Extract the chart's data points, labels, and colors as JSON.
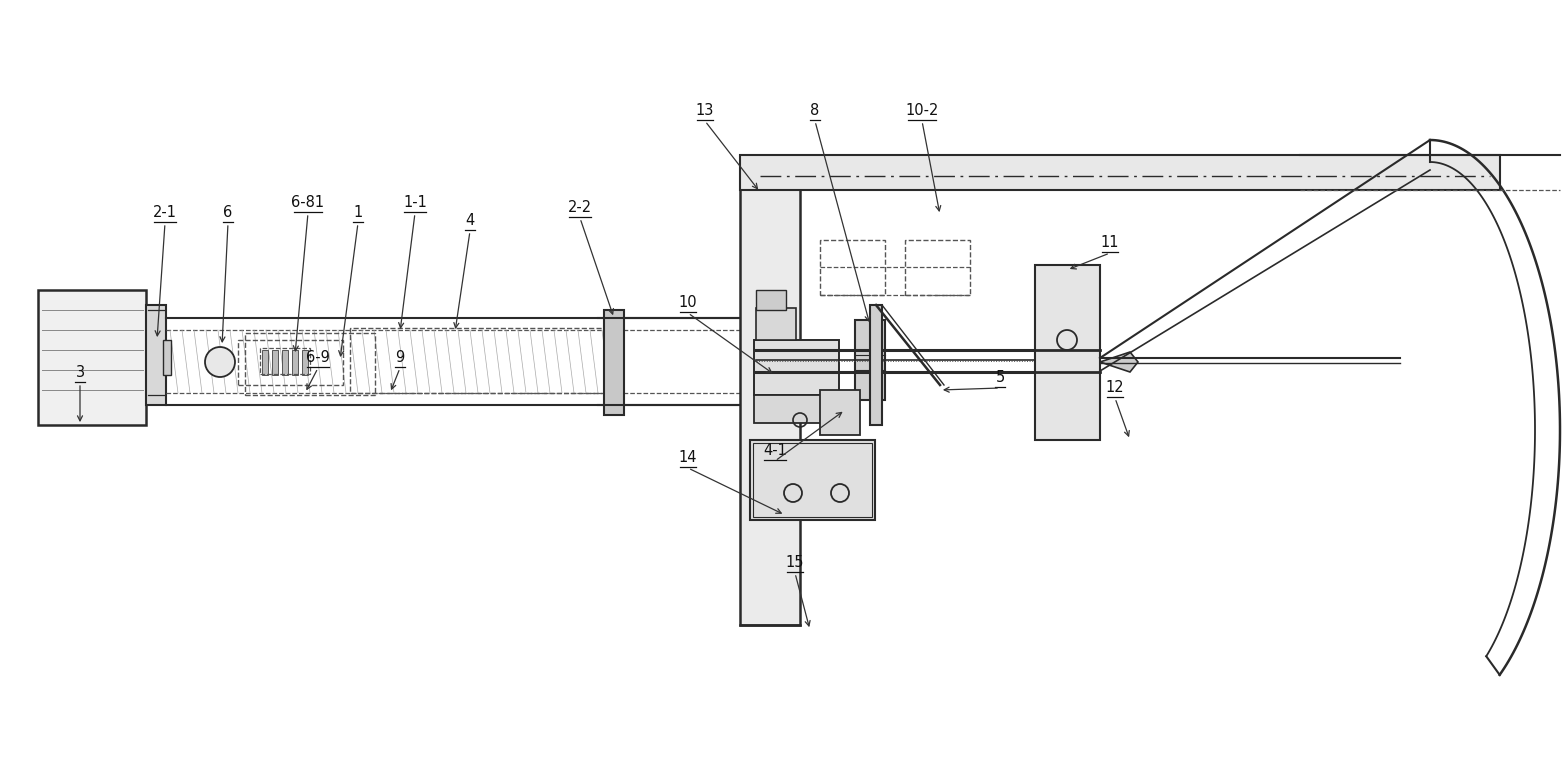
{
  "bg_color": "#ffffff",
  "lc": "#2a2a2a",
  "dc": "#555555",
  "figsize": [
    15.63,
    7.62
  ],
  "dpi": 100,
  "xlim": [
    0,
    1563
  ],
  "ylim": [
    0,
    762
  ]
}
